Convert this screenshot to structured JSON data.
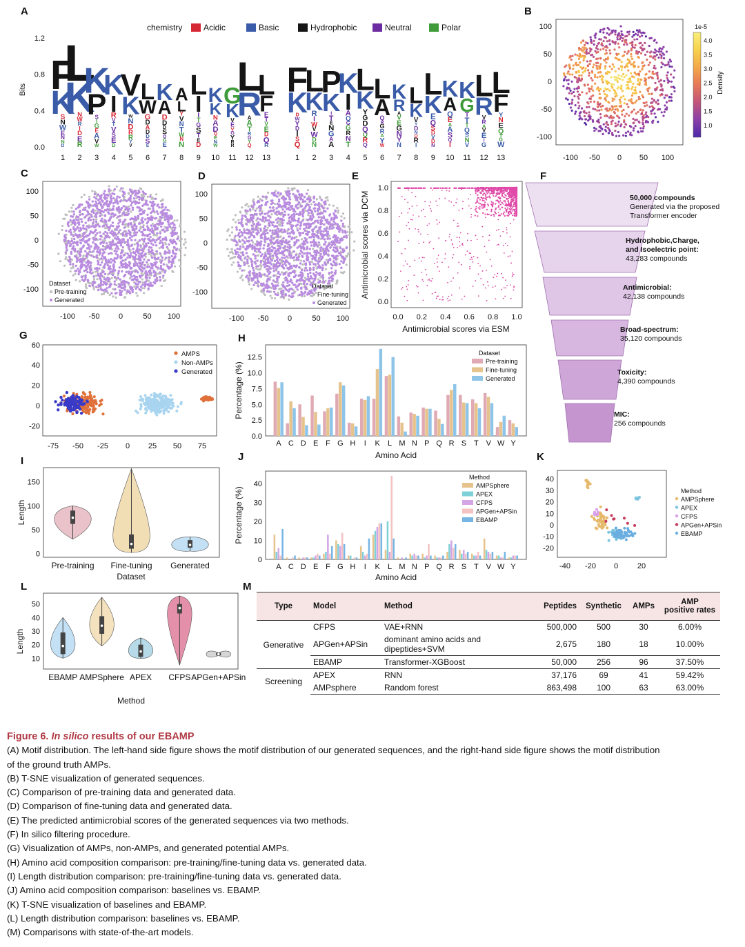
{
  "panels": {
    "A": {
      "label": "A",
      "legend_title": "chemistry",
      "legend": [
        {
          "name": "Acidic",
          "color": "#d62735"
        },
        {
          "name": "Basic",
          "color": "#3a5ba8"
        },
        {
          "name": "Hydrophobic",
          "color": "#151515"
        },
        {
          "name": "Neutral",
          "color": "#6a2ca0"
        },
        {
          "name": "Polar",
          "color": "#3f9b3a"
        }
      ],
      "ylabel": "Bits",
      "yticks": [
        "0.0",
        "0.4",
        "0.8",
        "1.2"
      ],
      "positions": [
        "1",
        "2",
        "3",
        "4",
        "5",
        "6",
        "7",
        "8",
        "9",
        "10",
        "11",
        "12",
        "13"
      ],
      "logo_generated": [
        "FK",
        "LK",
        "KP",
        "KI",
        "VK",
        "LW",
        "KA",
        "AL",
        "LI",
        "KK",
        "GK",
        "LR",
        "LF"
      ],
      "logo_ground_truth": [
        "FK",
        "LK",
        "PK",
        "KI",
        "LK",
        "LA",
        "KR",
        "LK",
        "LK",
        "KA",
        "KG",
        "LR",
        "LF"
      ]
    },
    "B": {
      "label": "B",
      "colorbar_title": "Density",
      "colorbar_exp": "1e-5",
      "colorbar_ticks": [
        "4.0",
        "3.5",
        "3.0",
        "2.5",
        "2.0",
        "1.5",
        "1.0"
      ],
      "xticks": [
        "-100",
        "-50",
        "0",
        "50",
        "100"
      ],
      "yticks": [
        "100",
        "50",
        "0",
        "-50",
        "-100"
      ]
    },
    "C": {
      "label": "C",
      "legend_title": "Dataset",
      "legend": [
        "Pre-training",
        "Generated"
      ],
      "xticks": [
        "-100",
        "-50",
        "0",
        "50",
        "100"
      ],
      "yticks": [
        "100",
        "50",
        "0",
        "-50",
        "-100"
      ]
    },
    "D": {
      "label": "D",
      "legend_title": "Dataset",
      "legend": [
        "Fine-tuning",
        "Generated"
      ],
      "xticks": [
        "-100",
        "-50",
        "0",
        "50",
        "100"
      ],
      "yticks": [
        "100",
        "50",
        "0",
        "-50",
        "-100"
      ]
    },
    "E": {
      "label": "E",
      "xlabel": "Antimicrobial scores via ESM",
      "ylabel": "Antimicrobial scores via DCM",
      "xticks": [
        "0.0",
        "0.2",
        "0.4",
        "0.6",
        "0.8",
        "1.0"
      ],
      "yticks": [
        "0.0",
        "0.2",
        "0.4",
        "0.6",
        "0.8",
        "1.0"
      ]
    },
    "F": {
      "label": "F",
      "stages": [
        {
          "title": "50,000 compounds",
          "sub1": "Generated via the proposed",
          "sub2": "Transformer encoder"
        },
        {
          "title": "Hydrophobic,Charge,",
          "sub1": "and Isoelectric point:",
          "sub2": "43,283 compounds"
        },
        {
          "title": "Antimicrobial:",
          "sub1": "42,138 compounds",
          "sub2": ""
        },
        {
          "title": "Broad-spectrum:",
          "sub1": "35,120 compounds",
          "sub2": ""
        },
        {
          "title": "Toxicity:",
          "sub1": "4,390 compounds",
          "sub2": ""
        },
        {
          "title": "MIC:",
          "sub1": "256 compounds",
          "sub2": ""
        }
      ]
    },
    "G": {
      "label": "G",
      "legend": [
        "AMPS",
        "Non-AMPs",
        "Generated"
      ],
      "xticks": [
        "-75",
        "-50",
        "-25",
        "0",
        "25",
        "50",
        "75"
      ],
      "yticks": [
        "60",
        "40",
        "20",
        "0",
        "-20"
      ]
    },
    "I": {
      "label": "I",
      "xlabel": "Dataset",
      "ylabel": "Length",
      "yticks": [
        "150",
        "100",
        "50",
        "0"
      ]
    },
    "K": {
      "label": "K",
      "legend_title": "Method",
      "legend": [
        "AMPSphere",
        "APEX",
        "CFPS",
        "APGen+APSin",
        "EBAMP"
      ],
      "xticks": [
        "-40",
        "-20",
        "0",
        "20"
      ],
      "yticks": [
        "40",
        "30",
        "20",
        "10",
        "0",
        "-10",
        "-20"
      ]
    },
    "L": {
      "label": "L",
      "xlabel": "Method",
      "ylabel": "Length",
      "yticks": [
        "50",
        "40",
        "30",
        "20",
        "10"
      ]
    }
  },
  "chart_data": [
    {
      "id": "H",
      "type": "bar",
      "title": "",
      "xlabel": "Amino Acid",
      "ylabel": "Percentage (%)",
      "ylim": [
        0,
        14
      ],
      "yticks": [
        "0.0",
        "2.5",
        "5.0",
        "7.5",
        "10.0",
        "12.5"
      ],
      "legend_title": "Dataset",
      "categories": [
        "A",
        "C",
        "D",
        "E",
        "F",
        "G",
        "H",
        "I",
        "K",
        "L",
        "M",
        "N",
        "P",
        "Q",
        "R",
        "S",
        "T",
        "V",
        "W",
        "Y"
      ],
      "series": [
        {
          "name": "Pre-training",
          "color": "#e0aab4",
          "values": [
            8.6,
            2.0,
            5.0,
            6.4,
            3.9,
            6.7,
            2.1,
            5.9,
            5.9,
            9.5,
            3.1,
            3.7,
            4.5,
            4.0,
            6.5,
            6.5,
            5.8,
            6.8,
            1.4,
            2.5
          ]
        },
        {
          "name": "Fine-tuning",
          "color": "#e6c38d",
          "values": [
            7.6,
            5.5,
            3.0,
            3.8,
            4.4,
            8.5,
            2.0,
            5.7,
            10.6,
            9.7,
            2.1,
            3.5,
            4.3,
            2.7,
            7.3,
            5.3,
            5.2,
            6.2,
            2.2,
            2.0
          ]
        },
        {
          "name": "Generated",
          "color": "#8ec4e8",
          "values": [
            8.5,
            4.4,
            1.7,
            1.8,
            4.5,
            8.0,
            1.5,
            6.3,
            13.8,
            12.5,
            0.7,
            3.2,
            4.3,
            1.9,
            8.2,
            5.2,
            4.4,
            5.2,
            3.2,
            1.4
          ]
        }
      ]
    },
    {
      "id": "J",
      "type": "bar",
      "xlabel": "Amino Acid",
      "ylabel": "Percentage (%)",
      "ylim": [
        0,
        45
      ],
      "yticks": [
        "0",
        "10",
        "20",
        "30",
        "40"
      ],
      "legend_title": "Method",
      "categories": [
        "A",
        "C",
        "D",
        "E",
        "F",
        "G",
        "H",
        "I",
        "K",
        "L",
        "M",
        "N",
        "P",
        "Q",
        "R",
        "S",
        "T",
        "V",
        "W",
        "Y"
      ],
      "series": [
        {
          "name": "AMPSphere",
          "color": "#e6c38d",
          "values": [
            13,
            1,
            1,
            1,
            3,
            10,
            2,
            7,
            13,
            5,
            1,
            3,
            3,
            2,
            4,
            5,
            3,
            11,
            2,
            1
          ]
        },
        {
          "name": "APEX",
          "color": "#7fd1d8",
          "values": [
            4,
            0,
            0,
            1,
            4,
            8,
            2,
            4,
            15,
            20,
            0,
            2,
            1,
            1,
            8,
            3,
            2,
            5,
            2,
            1
          ]
        },
        {
          "name": "CFPS",
          "color": "#d4a6e6",
          "values": [
            6,
            0,
            1,
            2,
            13,
            7,
            0,
            2,
            17,
            4,
            1,
            3,
            2,
            1,
            10,
            5,
            2,
            4,
            1,
            2
          ]
        },
        {
          "name": "APGen+APSin",
          "color": "#f4c2c2",
          "values": [
            2,
            1,
            1,
            3,
            3,
            14,
            1,
            3,
            19,
            44,
            0,
            2,
            8,
            1,
            6,
            3,
            4,
            3,
            1,
            2
          ]
        },
        {
          "name": "EBAMP",
          "color": "#77b6e4",
          "values": [
            16,
            2,
            1,
            2,
            7,
            8,
            1,
            11,
            19,
            11,
            1,
            2,
            2,
            2,
            8,
            4,
            2,
            4,
            4,
            2
          ]
        }
      ]
    },
    {
      "id": "I",
      "type": "violin",
      "categories": [
        "Pre-training",
        "Fine-tuning",
        "Generated"
      ],
      "medians": [
        75,
        20,
        18
      ],
      "q1": [
        62,
        10,
        12
      ],
      "q3": [
        90,
        40,
        28
      ],
      "mins": [
        30,
        2,
        5
      ],
      "maxs": [
        100,
        178,
        35
      ]
    },
    {
      "id": "L",
      "type": "violin",
      "categories": [
        "EBAMP",
        "AMPSphere",
        "APEX",
        "CFPS",
        "APGen+APSin"
      ],
      "medians": [
        19,
        34,
        15,
        47,
        13
      ],
      "q1": [
        13,
        28,
        11,
        43,
        12
      ],
      "q3": [
        29,
        41,
        20,
        50,
        14
      ],
      "mins": [
        10,
        19,
        10,
        5,
        12
      ],
      "maxs": [
        40,
        55,
        25,
        56,
        14
      ]
    }
  ],
  "table": {
    "label": "M",
    "headers": [
      "Type",
      "Model",
      "Method",
      "Peptides",
      "Synthetic",
      "AMPs",
      "AMP positive rates"
    ],
    "header_rate_line1": "AMP",
    "header_rate_line2": "positive rates",
    "generative_label": "Generative",
    "screening_label": "Screening",
    "rows": [
      {
        "model": "CFPS",
        "method": "VAE+RNN",
        "peptides": "500,000",
        "synthetic": "500",
        "amps": "30",
        "rate": "6.00%"
      },
      {
        "model": "APGen+APSin",
        "method": "dominant amino acids and dipeptides+SVM",
        "peptides": "2,675",
        "synthetic": "180",
        "amps": "18",
        "rate": "10.00%"
      },
      {
        "model": "EBAMP",
        "method": "Transformer-XGBoost",
        "peptides": "50,000",
        "synthetic": "256",
        "amps": "96",
        "rate": "37.50%"
      },
      {
        "model": "APEX",
        "method": "RNN",
        "peptides": "37,176",
        "synthetic": "69",
        "amps": "41",
        "rate": "59.42%"
      },
      {
        "model": "AMPsphere",
        "method": "Random forest",
        "peptides": "863,498",
        "synthetic": "100",
        "amps": "63",
        "rate": "63.00%"
      }
    ]
  },
  "caption": {
    "title_prefix": "Figure 6. ",
    "title_italic": "In silico",
    "title_rest": " results of our EBAMP",
    "lines": [
      "(A) Motif distribution. The left-hand side figure shows the motif distribution of our generated sequences, and the right-hand side figure shows the motif distribution",
      "of the ground truth AMPs.",
      "(B) T-SNE visualization of generated sequences.",
      "(C) Comparison of pre-training data and generated data.",
      "(D) Comparison of fine-tuning data and generated data.",
      "(E) The predicted antimicrobial scores of the generated sequences via two methods.",
      "(F) In silico filtering procedure.",
      "(G) Visualization of AMPs, non-AMPs, and generated potential AMPs.",
      "(H) Amino acid composition comparison: pre-training/fine-tuning data vs. generated data.",
      "(I) Length distribution comparison: pre-training/fine-tuning data vs. generated data.",
      "(J) Amino acid composition comparison: baselines vs. EBAMP.",
      "(K) T-SNE visualization of baselines and EBAMP.",
      "(L) Length distribution comparison: baselines vs. EBAMP.",
      "(M) Comparisons with state-of-the-art models."
    ]
  }
}
